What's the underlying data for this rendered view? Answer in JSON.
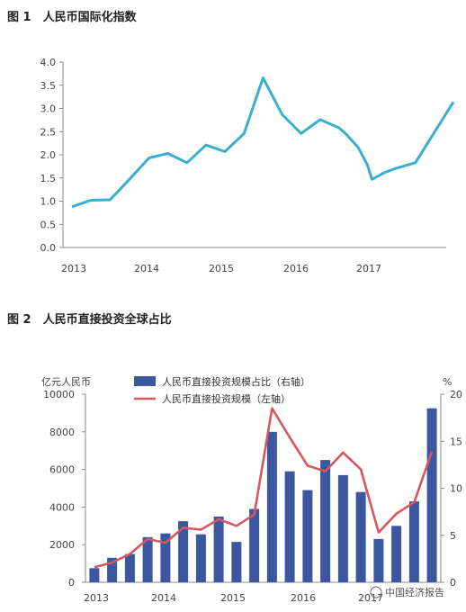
{
  "figure1": {
    "title": "图 1　人民币国际化指数",
    "chart_data": {
      "type": "line",
      "title": "人民币国际化指数",
      "ylim": [
        0,
        4.0
      ],
      "y_ticks": [
        "0.0",
        "0.5",
        "1.0",
        "1.5",
        "2.0",
        "2.5",
        "3.0",
        "3.5",
        "4.0"
      ],
      "x_ticks": [
        "2013",
        "2014",
        "2015",
        "2016",
        "2017"
      ],
      "grid": false,
      "color": "#3aaed0",
      "x": [
        2012.98,
        2013.23,
        2013.48,
        2013.74,
        2013.99,
        2014.24,
        2014.49,
        2014.74,
        2014.99,
        2015.24,
        2015.49,
        2015.74,
        2015.99,
        2016.24,
        2016.49,
        2016.59,
        2016.74,
        2016.86,
        2016.92,
        2017.09,
        2017.24,
        2017.49,
        2017.99
      ],
      "y": [
        0.88,
        1.02,
        1.03,
        1.48,
        1.93,
        2.03,
        1.83,
        2.21,
        2.07,
        2.46,
        3.66,
        2.87,
        2.46,
        2.76,
        2.58,
        2.43,
        2.16,
        1.78,
        1.47,
        1.62,
        1.71,
        1.83,
        3.14
      ]
    }
  },
  "figure2": {
    "title": "图 2　人民币直接投资全球占比",
    "watermark": "中国经济报告",
    "chart_data": {
      "type": "bar",
      "title": "人民币直接投资全球占比",
      "y_left_unit": "亿元人民币",
      "y_right_unit": "%",
      "ylim_left": [
        0,
        10000
      ],
      "ylim_right": [
        0,
        20
      ],
      "y_left_ticks": [
        "0",
        "2000",
        "4000",
        "6000",
        "8000",
        "10000"
      ],
      "y_right_ticks": [
        "0",
        "5",
        "10",
        "15",
        "20"
      ],
      "x_ticks": [
        "2013",
        "2014",
        "2015",
        "2016",
        "2017"
      ],
      "legend_position": "top",
      "colors": {
        "bar": "#3a57a0",
        "line": "#d8575c"
      },
      "series": [
        {
          "name": "人民币直接投资规模占比（右轴）",
          "type": "bar",
          "axis": "right",
          "values": [
            1.5,
            2.6,
            3.0,
            4.8,
            5.2,
            6.5,
            5.1,
            7.0,
            4.3,
            7.8,
            16.0,
            11.8,
            9.8,
            13.0,
            11.4,
            9.6,
            4.6,
            6.0,
            8.6,
            18.5
          ]
        },
        {
          "name": "人民币直接投资规模（左轴）",
          "type": "line",
          "axis": "left",
          "values": [
            800,
            1050,
            1500,
            2300,
            2100,
            2900,
            2800,
            3350,
            3000,
            3600,
            9250,
            7700,
            6200,
            5900,
            6900,
            6000,
            2650,
            3650,
            4250,
            6950
          ]
        }
      ]
    }
  }
}
